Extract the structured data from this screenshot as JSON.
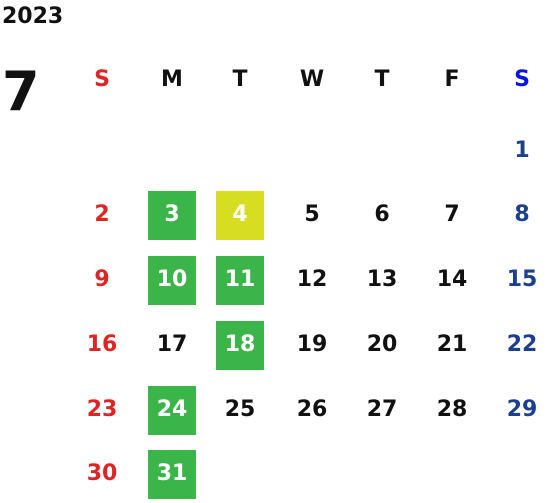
{
  "year": "2023",
  "month": "7",
  "weekdays": [
    "S",
    "M",
    "T",
    "W",
    "T",
    "F",
    "S"
  ],
  "weeks": [
    [
      null,
      null,
      null,
      null,
      null,
      null,
      "1"
    ],
    [
      "2",
      {
        "day": "3",
        "fill": "#3bb54a"
      },
      {
        "day": "4",
        "fill": "#d7de21"
      },
      "5",
      "6",
      "7",
      "8"
    ],
    [
      "9",
      {
        "day": "10",
        "fill": "#3bb54a"
      },
      {
        "day": "11",
        "fill": "#3bb54a"
      },
      "12",
      "13",
      "14",
      "15"
    ],
    [
      "16",
      "17",
      {
        "day": "18",
        "fill": "#3bb54a"
      },
      "19",
      "20",
      "21",
      "22"
    ],
    [
      "23",
      {
        "day": "24",
        "fill": "#3bb54a"
      },
      "25",
      "26",
      "27",
      "28",
      "29"
    ],
    [
      "30",
      {
        "day": "31",
        "fill": "#3bb54a"
      },
      null,
      null,
      null,
      null,
      null
    ]
  ]
}
